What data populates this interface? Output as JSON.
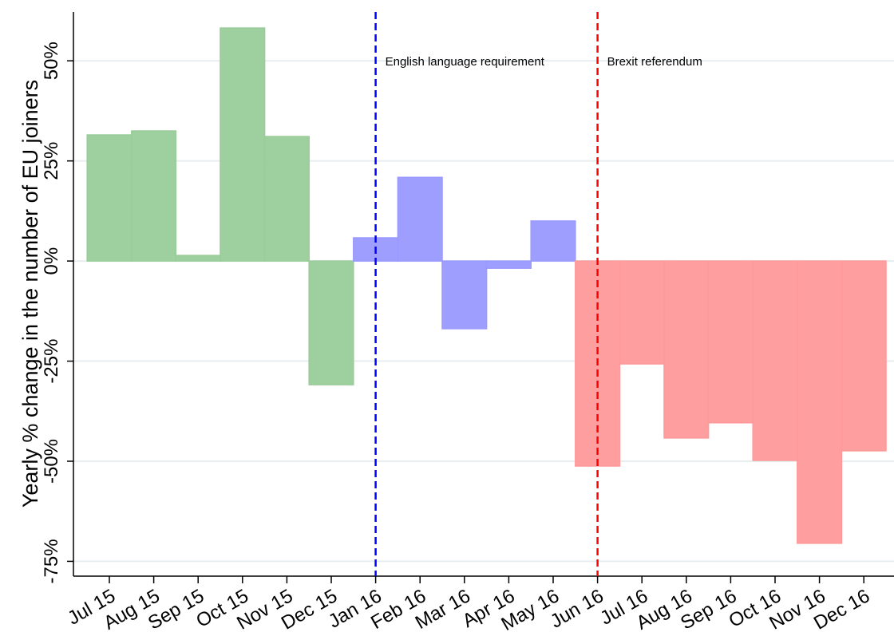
{
  "chart_data": {
    "type": "bar",
    "y_label": "Yearly % change in the number of EU joiners",
    "categories": [
      "Jul 15",
      "Aug 15",
      "Sep 15",
      "Oct 15",
      "Nov 15",
      "Dec 15",
      "Jan 16",
      "Feb 16",
      "Mar 16",
      "Apr 16",
      "May 16",
      "Jun 16",
      "Jul 16",
      "Aug 16",
      "Sep 16",
      "Oct 16",
      "Nov 16",
      "Dec 16"
    ],
    "series": [
      {
        "color": "#99cc99",
        "values": [
          31.5,
          32.5,
          1.4,
          58.2,
          31.1,
          -30.9,
          null,
          null,
          null,
          null,
          null,
          null,
          null,
          null,
          null,
          null,
          null,
          null
        ]
      },
      {
        "color": "#9999ff",
        "values": [
          null,
          null,
          null,
          null,
          null,
          null,
          5.8,
          20.9,
          -16.9,
          -1.8,
          10.0,
          null,
          null,
          null,
          null,
          null,
          null,
          null
        ]
      },
      {
        "color": "#ff9999",
        "values": [
          null,
          null,
          null,
          null,
          null,
          null,
          null,
          null,
          null,
          null,
          null,
          -51.2,
          -25.7,
          -44.2,
          -40.4,
          -49.8,
          -70.5,
          -47.4
        ]
      }
    ],
    "ylim": [
      -78.7,
      62.2
    ],
    "yticks": [
      {
        "value": -75,
        "label": "-75%"
      },
      {
        "value": -50,
        "label": "-50%"
      },
      {
        "value": -25,
        "label": "-25%"
      },
      {
        "value": 0,
        "label": "0%"
      },
      {
        "value": 25,
        "label": "25%"
      },
      {
        "value": 50,
        "label": "50%"
      }
    ],
    "grid": true,
    "annotations": [
      {
        "text": "English language requirement",
        "x": "Jan 16",
        "color": "#0000ff"
      },
      {
        "text": "Brexit referendum",
        "x": "Jun 16",
        "color": "#ff0000"
      }
    ]
  }
}
